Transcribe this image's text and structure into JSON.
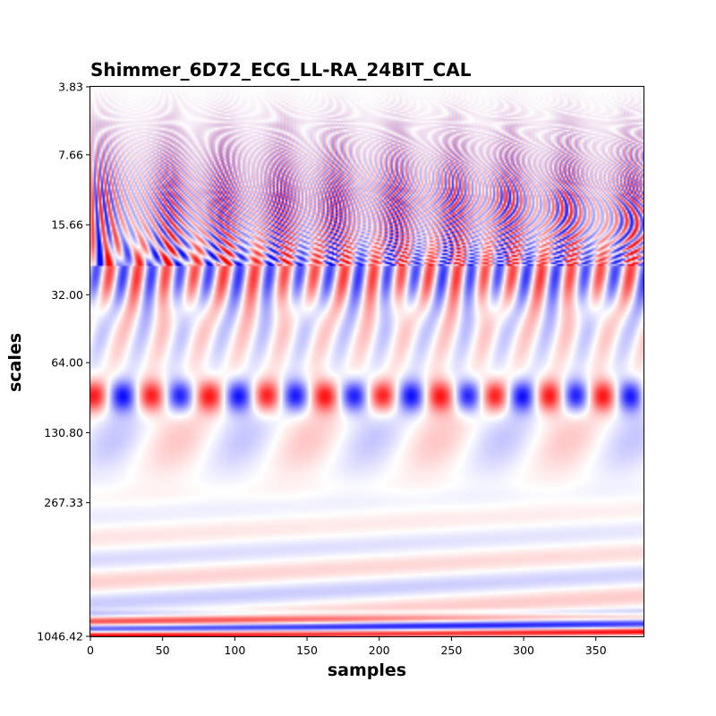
{
  "chart_data": {
    "type": "heatmap",
    "title": "Shimmer_6D72_ECG_LL-RA_24BIT_CAL",
    "xlabel": "samples",
    "ylabel": "scales",
    "xlim": [
      0,
      383
    ],
    "x_ticks": [
      0,
      50,
      100,
      150,
      200,
      250,
      300,
      350
    ],
    "y_scale": "log",
    "y_inverted": true,
    "ylim": [
      3.83,
      1046.42
    ],
    "y_ticks": [
      "3.83",
      "7.66",
      "15.66",
      "32.00",
      "64.00",
      "130.80",
      "267.33",
      "1046.42"
    ],
    "colormap": "bwr",
    "colors": {
      "negative": "#0000ff",
      "zero": "#ffffff",
      "positive": "#ff0000"
    },
    "grid": false,
    "features": {
      "high_frequency_bursts": {
        "scale_range": [
          3.83,
          15.66
        ],
        "x_centers": [
          8,
          55,
          92,
          132,
          170,
          212,
          252,
          290,
          330,
          375
        ]
      },
      "oscillation_band_1": {
        "scale_range": [
          16,
          35
        ],
        "period_samples": 20
      },
      "oscillation_band_2": {
        "scale_center": 90,
        "period_samples": 40
      },
      "low_frequency_stripes": {
        "scale_range": [
          250,
          1046.42
        ]
      }
    }
  }
}
